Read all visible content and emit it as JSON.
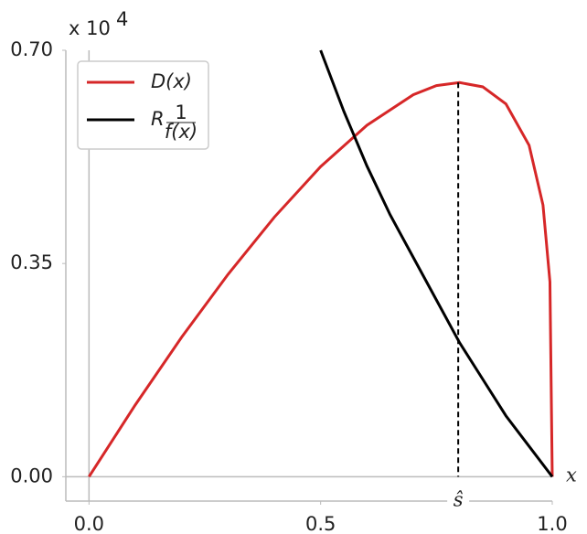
{
  "chart_data": {
    "type": "line",
    "x_label": "x",
    "y_offset": {
      "base": "x 10",
      "exponent": "4"
    },
    "marker": {
      "value": 0.797,
      "label": "ŝ"
    },
    "xlim": [
      -0.05,
      1.0
    ],
    "ylim": [
      -0.04,
      0.7
    ],
    "xticks": [
      {
        "value": 0,
        "label": "0.0"
      },
      {
        "value": 0.5,
        "label": "0.5"
      },
      {
        "value": 1.0,
        "label": "1.0"
      }
    ],
    "yticks": [
      {
        "value": 0,
        "label": "0.00"
      },
      {
        "value": 0.35,
        "label": "0.35"
      },
      {
        "value": 0.7,
        "label": "0.70"
      }
    ],
    "series": [
      {
        "name": "D(x)",
        "color": "#d62728",
        "x": [
          0,
          0.1,
          0.2,
          0.3,
          0.4,
          0.5,
          0.6,
          0.7,
          0.75,
          0.8,
          0.85,
          0.9,
          0.95,
          0.98,
          0.995,
          1.0
        ],
        "values": [
          0,
          0.118,
          0.229,
          0.332,
          0.426,
          0.509,
          0.577,
          0.627,
          0.642,
          0.647,
          0.64,
          0.612,
          0.544,
          0.446,
          0.32,
          0
        ]
      },
      {
        "name": "R",
        "name_fraction": {
          "numerator": "1",
          "denominator": "f(x)"
        },
        "color": "#000000",
        "x": [
          0.5,
          0.55,
          0.6,
          0.65,
          0.7,
          0.75,
          0.8,
          0.85,
          0.9,
          0.95,
          1.0
        ],
        "values": [
          0.7,
          0.6,
          0.51,
          0.43,
          0.36,
          0.29,
          0.22,
          0.16,
          0.1,
          0.05,
          0
        ]
      }
    ]
  }
}
